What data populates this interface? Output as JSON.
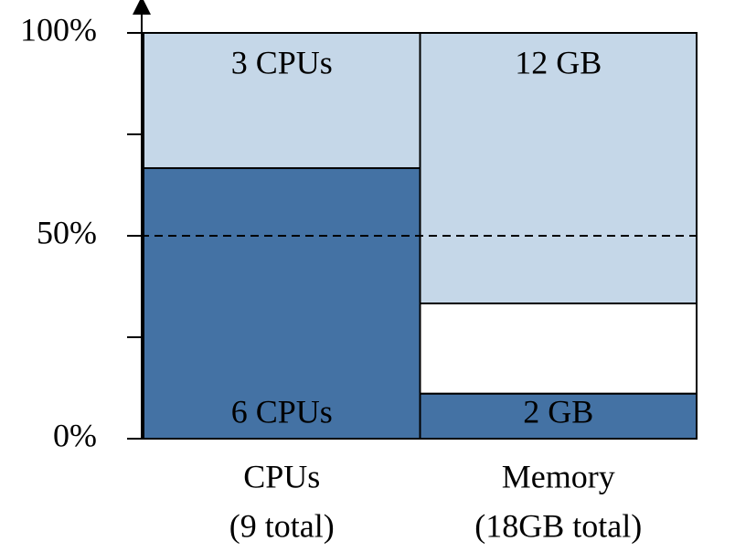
{
  "chart_data": {
    "type": "bar",
    "stacked": true,
    "categories": [
      [
        "CPUs",
        "(9 total)"
      ],
      [
        "Memory",
        "(18GB total)"
      ]
    ],
    "series": [
      {
        "color": "#4472a4",
        "values": [
          66.67,
          11.11
        ],
        "value_labels": [
          "6 CPUs",
          "2 GB"
        ]
      },
      {
        "color": "#ffffff",
        "values": [
          null,
          22.22
        ],
        "value_labels": [
          null,
          null
        ]
      },
      {
        "color": "#c5d7e8",
        "values": [
          33.33,
          66.67
        ],
        "value_labels": [
          "3 CPUs",
          "12 GB"
        ]
      }
    ],
    "ylim": [
      0,
      100
    ],
    "yticks": [
      {
        "value": 0,
        "label": "0%"
      },
      {
        "value": 50,
        "label": "50%"
      },
      {
        "value": 100,
        "label": "100%"
      }
    ],
    "minor_yticks": [
      25,
      75
    ],
    "hline": 50
  }
}
